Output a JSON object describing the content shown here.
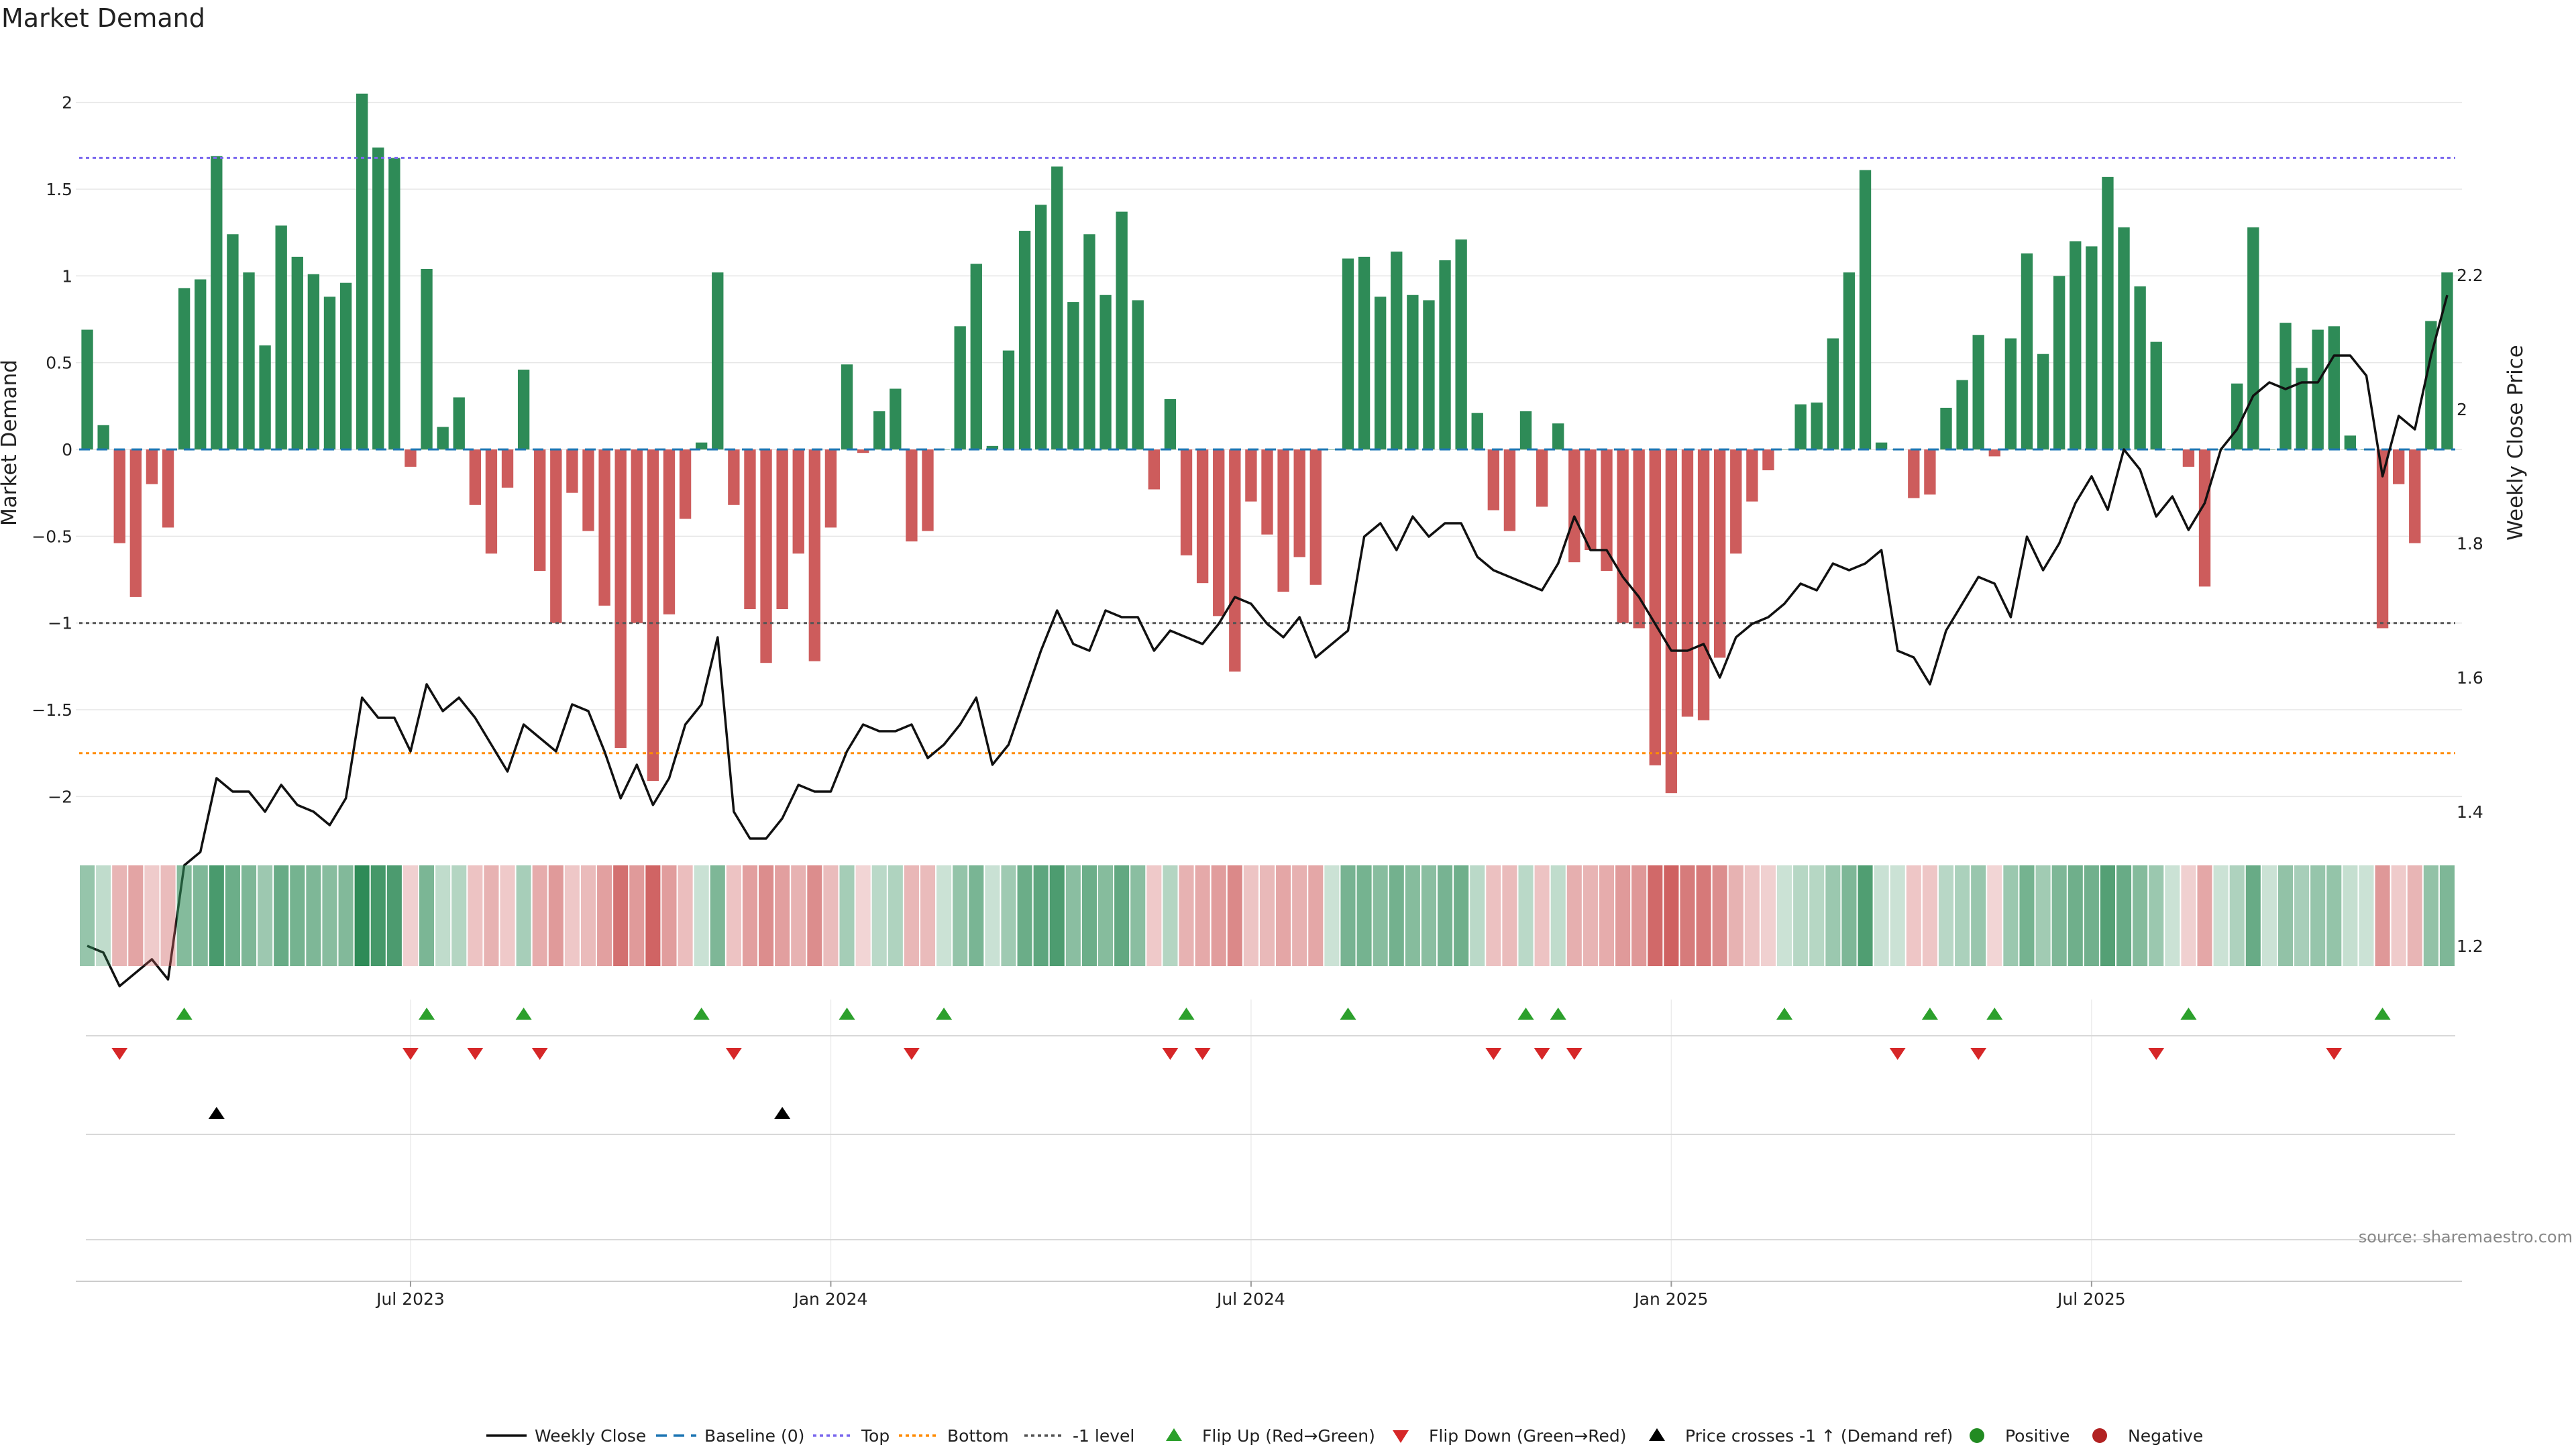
{
  "chart_data": {
    "type": "bar+line",
    "title": "Market Demand",
    "ylabel": "Market Demand",
    "y2label": "Weekly Close Price",
    "ylim": [
      -2.2,
      2.3
    ],
    "y2lim": [
      1.1,
      2.2
    ],
    "yticks": [
      -2,
      -1.5,
      -1,
      -0.5,
      0,
      0.5,
      1,
      1.5,
      2
    ],
    "y2ticks": [
      1.2,
      1.4,
      1.6,
      1.8,
      2,
      2.2
    ],
    "ytick_labels": [
      "−2",
      "−1.5",
      "−1",
      "−0.5",
      "0",
      "0.5",
      "1",
      "1.5",
      "2"
    ],
    "y2tick_labels": [
      "1.2",
      "1.4",
      "1.6",
      "1.8",
      "2",
      "2.2"
    ],
    "xtick_labels": [
      {
        "label": "Jul 2023",
        "week": 20
      },
      {
        "label": "Jan 2024",
        "week": 46
      },
      {
        "label": "Jul 2024",
        "week": 72
      },
      {
        "label": "Jan 2025",
        "week": 98
      },
      {
        "label": "Jul 2025",
        "week": 124
      }
    ],
    "reference_levels": {
      "top": 1.68,
      "bottom": -1.75,
      "minus_one": -1.0,
      "baseline": 0
    },
    "demand": [
      0.69,
      0.14,
      -0.54,
      -0.85,
      -0.2,
      -0.45,
      0.93,
      0.98,
      1.69,
      1.24,
      1.02,
      0.6,
      1.29,
      1.11,
      1.01,
      0.88,
      0.96,
      2.05,
      1.74,
      1.68,
      -0.1,
      1.04,
      0.13,
      0.3,
      -0.32,
      -0.6,
      -0.22,
      0.46,
      -0.7,
      -1.0,
      -0.25,
      -0.47,
      -0.9,
      -1.72,
      -1.0,
      -1.91,
      -0.95,
      -0.4,
      0.04,
      1.02,
      -0.32,
      -0.92,
      -1.23,
      -0.92,
      -0.6,
      -1.22,
      -0.45,
      0.49,
      -0.02,
      0.22,
      0.35,
      -0.53,
      -0.47,
      0.0,
      0.71,
      1.07,
      0.02,
      0.57,
      1.26,
      1.41,
      1.63,
      0.85,
      1.24,
      0.89,
      1.37,
      0.86,
      -0.23,
      0.29,
      -0.61,
      -0.77,
      -0.96,
      -1.28,
      -0.3,
      -0.49,
      -0.82,
      -0.62,
      -0.78,
      0.0,
      1.1,
      1.11,
      0.88,
      1.14,
      0.89,
      0.86,
      1.09,
      1.21,
      0.21,
      -0.35,
      -0.47,
      0.22,
      -0.33,
      0.15,
      -0.65,
      -0.58,
      -0.7,
      -1.0,
      -1.03,
      -1.82,
      -1.98,
      -1.54,
      -1.56,
      -1.2,
      -0.6,
      -0.3,
      -0.12,
      0.0,
      0.26,
      0.27,
      0.64,
      1.02,
      1.61,
      0.04,
      0.0,
      -0.28,
      -0.26,
      0.24,
      0.4,
      0.66,
      -0.04,
      0.64,
      1.13,
      0.55,
      1.0,
      1.2,
      1.17,
      1.57,
      1.28,
      0.94,
      0.62,
      0.0,
      -0.1,
      -0.79,
      0.0,
      0.38,
      1.28,
      0.0,
      0.73,
      0.47,
      0.69,
      0.71,
      0.08,
      0.0,
      -1.03,
      -0.2,
      -0.54,
      0.74,
      1.02
    ],
    "weekly_close": [
      1.2,
      1.19,
      1.14,
      1.16,
      1.18,
      1.15,
      1.32,
      1.34,
      1.45,
      1.43,
      1.43,
      1.4,
      1.44,
      1.41,
      1.4,
      1.38,
      1.42,
      1.57,
      1.54,
      1.54,
      1.49,
      1.59,
      1.55,
      1.57,
      1.54,
      1.5,
      1.46,
      1.53,
      1.51,
      1.49,
      1.56,
      1.55,
      1.49,
      1.42,
      1.47,
      1.41,
      1.45,
      1.53,
      1.56,
      1.66,
      1.4,
      1.36,
      1.36,
      1.39,
      1.44,
      1.43,
      1.43,
      1.49,
      1.53,
      1.52,
      1.52,
      1.53,
      1.48,
      1.5,
      1.53,
      1.57,
      1.47,
      1.5,
      1.57,
      1.64,
      1.7,
      1.65,
      1.64,
      1.7,
      1.69,
      1.69,
      1.64,
      1.67,
      1.66,
      1.65,
      1.68,
      1.72,
      1.71,
      1.68,
      1.66,
      1.69,
      1.63,
      1.65,
      1.67,
      1.81,
      1.83,
      1.79,
      1.84,
      1.81,
      1.83,
      1.83,
      1.78,
      1.76,
      1.75,
      1.74,
      1.73,
      1.77,
      1.84,
      1.79,
      1.79,
      1.75,
      1.72,
      1.68,
      1.64,
      1.64,
      1.65,
      1.6,
      1.66,
      1.68,
      1.69,
      1.71,
      1.74,
      1.73,
      1.77,
      1.76,
      1.77,
      1.79,
      1.64,
      1.63,
      1.59,
      1.67,
      1.71,
      1.75,
      1.74,
      1.69,
      1.81,
      1.76,
      1.8,
      1.86,
      1.9,
      1.85,
      1.94,
      1.91,
      1.84,
      1.87,
      1.82,
      1.86,
      1.94,
      1.97,
      2.02,
      2.04,
      2.03,
      2.04,
      2.04,
      2.08,
      2.08,
      2.05,
      1.9,
      1.99,
      1.97,
      2.08,
      2.17
    ],
    "flip_up_weeks": [
      6,
      21,
      27,
      38,
      47,
      53,
      68,
      78,
      89,
      91,
      105,
      114,
      118,
      130,
      142
    ],
    "flip_down_weeks": [
      2,
      20,
      24,
      28,
      40,
      51,
      67,
      69,
      87,
      90,
      92,
      112,
      117,
      128,
      139
    ],
    "price_cross_weeks": [
      8,
      43
    ],
    "source": "source: sharemaestro.com",
    "legend": [
      "Weekly Close",
      "Baseline (0)",
      "Top",
      "Bottom",
      "-1 level",
      "Flip Up (Red→Green)",
      "Flip Down (Green→Red)",
      "Price crosses -1 ↑ (Demand ref)",
      "Positive",
      "Negative"
    ],
    "colors": {
      "positive": "#2e8b57",
      "negative": "#cd5c5c",
      "line": "#111111",
      "top": "#7b68ee",
      "bottom": "#ff8c00",
      "minus_one": "#555555",
      "baseline": "#1f77b4",
      "flip_up": "#2ca02c",
      "flip_down": "#d62728",
      "cross": "#000000",
      "leg_pos": "#228b22",
      "leg_neg": "#b22222",
      "grid": "#e6e6e6"
    }
  }
}
